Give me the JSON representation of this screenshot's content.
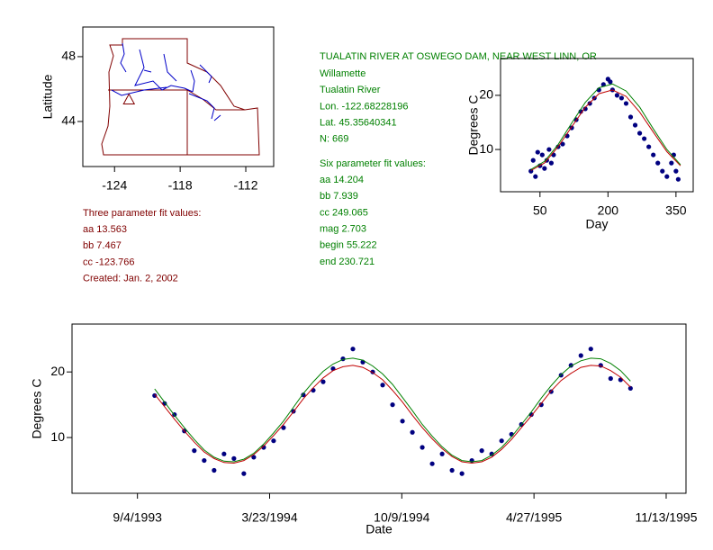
{
  "chart_data": [
    {
      "type": "map",
      "ylabel": "Latitude",
      "xlim": [
        -126.9,
        -109.45
      ],
      "ylim": [
        41.22,
        49.83
      ],
      "xticks": [
        -124,
        -118,
        -112
      ],
      "yticks": [
        48,
        44
      ],
      "series": [
        {
          "mode": "triangle",
          "color": "#800000",
          "x": [
            -122.68228196
          ],
          "values": [
            45.35640341
          ]
        }
      ]
    },
    {
      "type": "scatter",
      "xlabel": "Day",
      "ylabel": "Degrees C",
      "xlim": [
        -37,
        388
      ],
      "ylim": [
        2.2,
        26.8
      ],
      "xticks": [
        50,
        200,
        350
      ],
      "yticks": [
        20,
        10
      ],
      "series": [
        {
          "mode": "markers",
          "color": "#000080",
          "x": [
            30,
            35,
            40,
            45,
            50,
            55,
            60,
            65,
            70,
            75,
            80,
            90,
            100,
            110,
            120,
            130,
            140,
            150,
            160,
            170,
            180,
            190,
            200,
            205,
            210,
            220,
            230,
            240,
            250,
            260,
            270,
            280,
            290,
            300,
            310,
            320,
            330,
            340,
            345,
            350,
            355
          ],
          "values": [
            6,
            8,
            5,
            9.5,
            7,
            9,
            6.5,
            8,
            10,
            7.5,
            9,
            10.5,
            11,
            12.5,
            14,
            15.5,
            17,
            17.5,
            18.5,
            19.5,
            21,
            22,
            23,
            22.5,
            21,
            20,
            19.5,
            18.5,
            16,
            14.5,
            13,
            12,
            10.5,
            9,
            7.5,
            6,
            5,
            7.5,
            9,
            6,
            4.5
          ]
        },
        {
          "mode": "line",
          "color": "#c00000",
          "x": [
            30,
            60,
            90,
            120,
            150,
            180,
            210,
            240,
            270,
            300,
            330,
            360
          ],
          "values": [
            6.1,
            7.5,
            10.5,
            14.2,
            17.8,
            20.3,
            21.0,
            19.8,
            16.9,
            13.2,
            9.6,
            7.0
          ]
        },
        {
          "mode": "line",
          "color": "#008000",
          "x": [
            30,
            60,
            90,
            120,
            150,
            180,
            210,
            240,
            270,
            300,
            330,
            360
          ],
          "values": [
            6.3,
            7.8,
            10.9,
            14.9,
            18.7,
            21.4,
            22.1,
            20.8,
            17.8,
            13.8,
            10.0,
            7.2
          ]
        }
      ]
    },
    {
      "type": "line",
      "xlabel": "Date",
      "ylabel": "Degrees C",
      "xlim": [
        "1993-05-28",
        "1995-12-13"
      ],
      "ylim": [
        1.5,
        27.3
      ],
      "xticks": [
        {
          "value": "1993-09-04",
          "label": "9/4/1993"
        },
        {
          "value": "1994-03-23",
          "label": "3/23/1994"
        },
        {
          "value": "1994-10-09",
          "label": "10/9/1994"
        },
        {
          "value": "1995-04-27",
          "label": "4/27/1995"
        },
        {
          "value": "1995-11-13",
          "label": "11/13/1995"
        }
      ],
      "yticks": [
        20,
        10
      ],
      "x": [
        "1993-09-30",
        "1993-10-15",
        "1993-10-30",
        "1993-11-14",
        "1993-11-29",
        "1993-12-14",
        "1993-12-29",
        "1994-01-13",
        "1994-01-28",
        "1994-02-12",
        "1994-02-27",
        "1994-03-14",
        "1994-03-29",
        "1994-04-13",
        "1994-04-28",
        "1994-05-13",
        "1994-05-28",
        "1994-06-12",
        "1994-06-27",
        "1994-07-12",
        "1994-07-27",
        "1994-08-11",
        "1994-08-26",
        "1994-09-10",
        "1994-09-25",
        "1994-10-10",
        "1994-10-25",
        "1994-11-09",
        "1994-11-24",
        "1994-12-09",
        "1994-12-24",
        "1995-01-08",
        "1995-01-23",
        "1995-02-07",
        "1995-02-22",
        "1995-03-09",
        "1995-03-24",
        "1995-04-08",
        "1995-04-23",
        "1995-05-08",
        "1995-05-23",
        "1995-06-07",
        "1995-06-22",
        "1995-07-07",
        "1995-07-22",
        "1995-08-06",
        "1995-08-21",
        "1995-09-05",
        "1995-09-20"
      ],
      "series": [
        {
          "mode": "markers",
          "color": "#000080",
          "values": [
            16.4,
            15.2,
            13.5,
            11.0,
            8.0,
            6.5,
            5.0,
            7.5,
            6.8,
            4.5,
            7.0,
            8.5,
            9.5,
            11.5,
            14.0,
            16.5,
            17.2,
            18.5,
            20.5,
            22.0,
            23.5,
            21.5,
            20.0,
            18.0,
            15.0,
            12.5,
            10.8,
            8.5,
            6.0,
            7.5,
            5.0,
            4.5,
            6.5,
            8.0,
            7.5,
            9.5,
            10.5,
            12.0,
            13.5,
            15.0,
            17.0,
            19.5,
            21.0,
            22.5,
            23.5,
            21.0,
            19.0,
            18.8,
            17.5
          ]
        },
        {
          "mode": "line",
          "color": "#c00000",
          "values": [
            16.6,
            14.7,
            12.8,
            11.0,
            9.3,
            7.8,
            6.8,
            6.2,
            6.1,
            6.5,
            7.4,
            8.7,
            10.3,
            12.0,
            13.9,
            15.9,
            17.6,
            19.1,
            20.2,
            20.8,
            21.0,
            20.7,
            19.9,
            18.8,
            17.2,
            15.4,
            13.4,
            11.5,
            9.8,
            8.3,
            7.1,
            6.3,
            6.1,
            6.3,
            7.0,
            8.2,
            9.7,
            11.5,
            13.3,
            15.2,
            17.1,
            18.7,
            19.8,
            20.7,
            21.0,
            20.9,
            20.2,
            19.2,
            17.7
          ]
        },
        {
          "mode": "line",
          "color": "#008000",
          "values": [
            17.4,
            15.4,
            13.4,
            11.5,
            9.7,
            8.1,
            7.0,
            6.4,
            6.3,
            6.7,
            7.6,
            9.0,
            10.7,
            12.5,
            14.6,
            16.7,
            18.5,
            20.1,
            21.2,
            21.9,
            22.1,
            21.8,
            20.9,
            19.7,
            18.1,
            16.1,
            14.1,
            12.0,
            10.2,
            8.6,
            7.3,
            6.5,
            6.3,
            6.5,
            7.3,
            8.5,
            10.1,
            12.0,
            13.9,
            16.0,
            17.9,
            19.6,
            20.9,
            21.7,
            22.1,
            22.0,
            21.3,
            20.2,
            18.6
          ]
        }
      ]
    }
  ],
  "station_info": {
    "title": "TUALATIN RIVER AT OSWEGO DAM, NEAR WEST LINN, OR",
    "lines": [
      "Willamette",
      "Tualatin River",
      "Lon. -122.68228196",
      "Lat. 45.35640341",
      "N: 669"
    ]
  },
  "six_parameter": {
    "heading": "Six parameter fit values:",
    "lines": [
      "aa 14.204",
      "bb 7.939",
      "cc 249.065",
      "mag 2.703",
      "begin 55.222",
      "end 230.721"
    ]
  },
  "three_parameter": {
    "heading": "Three parameter fit values:",
    "lines": [
      "aa 13.563",
      "bb 7.467",
      "cc -123.766",
      "Created:   Jan. 2, 2002"
    ]
  }
}
